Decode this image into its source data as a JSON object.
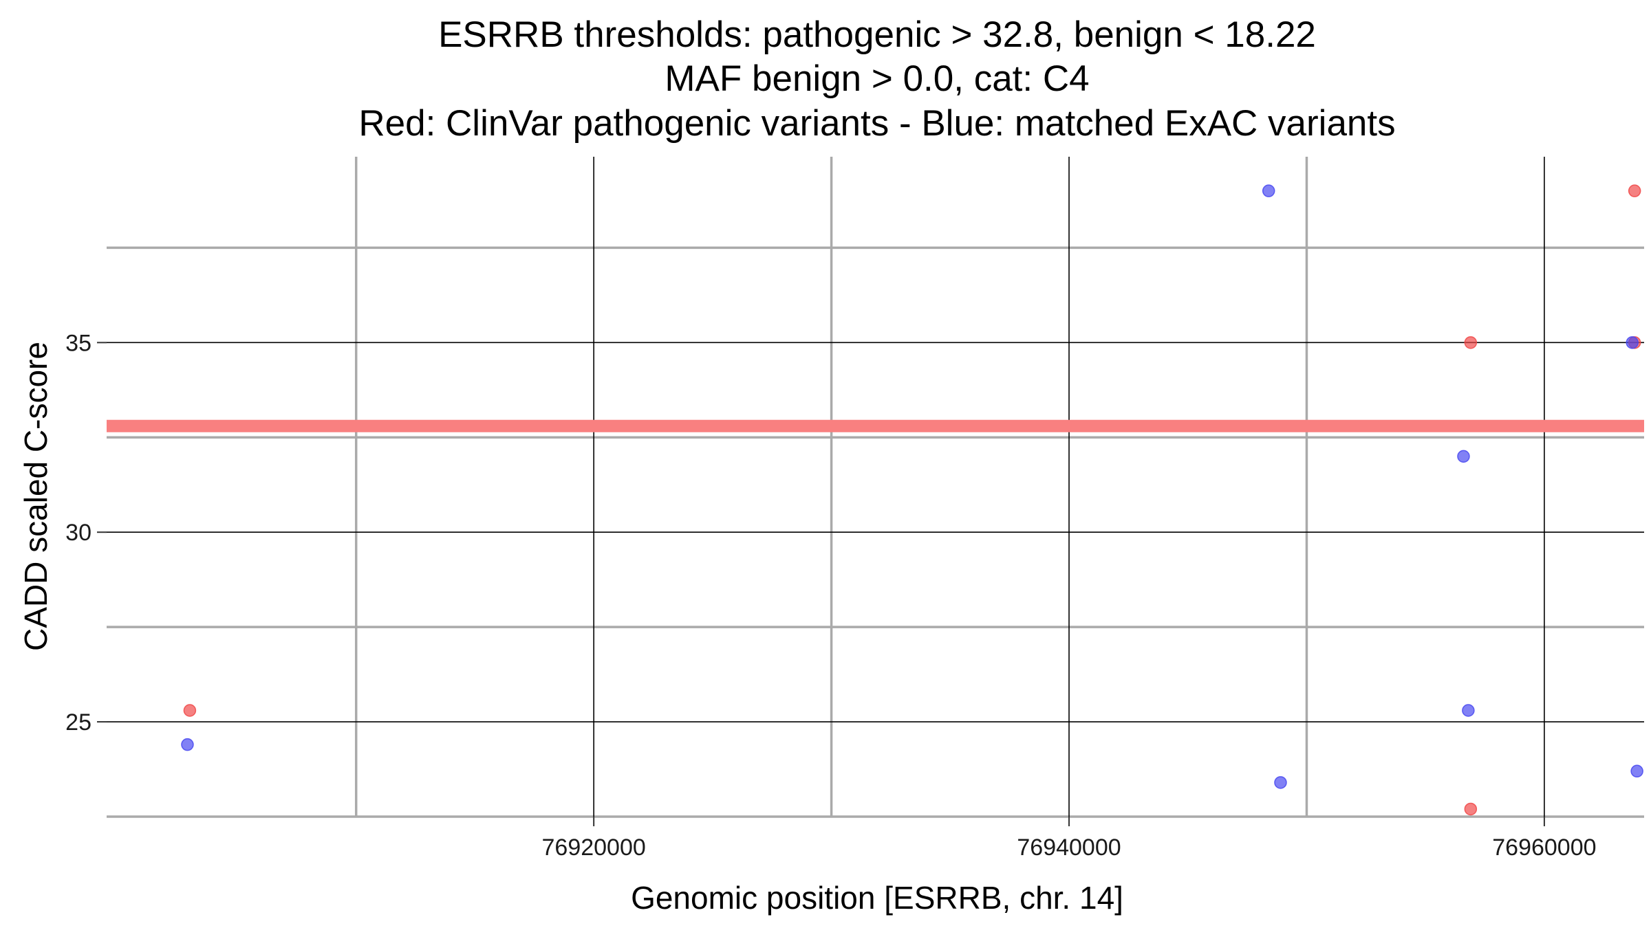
{
  "chart_data": {
    "type": "scatter",
    "title_lines": [
      "ESRRB thresholds: pathogenic > 32.8, benign < 18.22",
      "MAF benign > 0.0, cat: C4",
      "Red: ClinVar pathogenic variants - Blue: matched ExAC variants"
    ],
    "xlabel": "Genomic position [ESRRB, chr. 14]",
    "ylabel": "CADD scaled C-score",
    "xlim": [
      76899500,
      76964200
    ],
    "ylim": [
      22.5,
      39.9
    ],
    "x_major_ticks": [
      76920000,
      76940000,
      76960000
    ],
    "x_minor_ticks": [
      76910000,
      76930000,
      76950000
    ],
    "y_major_ticks": [
      25,
      30,
      35
    ],
    "y_minor_ticks": [
      22.5,
      27.5,
      32.5,
      37.5
    ],
    "x_tick_labels": [
      "76920000",
      "76940000",
      "76960000"
    ],
    "y_tick_labels": [
      "25",
      "30",
      "35"
    ],
    "grid": true,
    "threshold_line": {
      "y": 32.8,
      "color": "#f98080"
    },
    "series": [
      {
        "color": "#f04646",
        "points": [
          {
            "x": 76903000,
            "y": 25.3
          },
          {
            "x": 76956900,
            "y": 35.0
          },
          {
            "x": 76956900,
            "y": 22.7
          },
          {
            "x": 76963800,
            "y": 39.0
          },
          {
            "x": 76963800,
            "y": 35.0
          }
        ]
      },
      {
        "color": "#4646f0",
        "points": [
          {
            "x": 76902900,
            "y": 24.4
          },
          {
            "x": 76948400,
            "y": 39.0
          },
          {
            "x": 76948900,
            "y": 23.4
          },
          {
            "x": 76956600,
            "y": 32.0
          },
          {
            "x": 76956800,
            "y": 25.3
          },
          {
            "x": 76963700,
            "y": 35.0
          },
          {
            "x": 76963900,
            "y": 23.7
          }
        ]
      }
    ]
  }
}
